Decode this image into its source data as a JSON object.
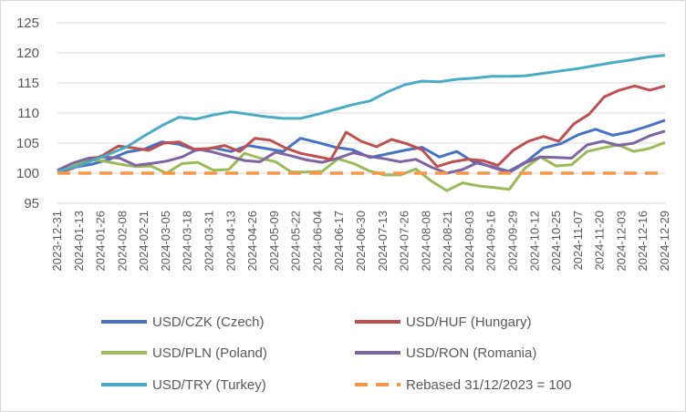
{
  "chart_data": {
    "type": "line",
    "title": "",
    "xlabel": "",
    "ylabel": "",
    "ylim": [
      95,
      125
    ],
    "yticks": [
      95,
      100,
      105,
      110,
      115,
      120,
      125
    ],
    "grid": "horizontal",
    "legend_position": "bottom",
    "x_tick_labels": [
      "2023-12-31",
      "2024-01-13",
      "2024-01-26",
      "2024-02-08",
      "2024-02-21",
      "2024-03-05",
      "2024-03-18",
      "2024-03-31",
      "2024-04-13",
      "2024-04-26",
      "2024-05-09",
      "2024-05-22",
      "2024-06-04",
      "2024-06-17",
      "2024-06-30",
      "2024-07-13",
      "2024-07-26",
      "2024-08-08",
      "2024-08-21",
      "2024-09-03",
      "2024-09-16",
      "2024-09-29",
      "2024-10-12",
      "2024-10-25",
      "2024-11-07",
      "2024-11-20",
      "2024-12-03",
      "2024-12-16",
      "2024-12-29"
    ],
    "series": [
      {
        "name": "USD/CZK (Czech)",
        "color": "#4472C4",
        "dash": "solid",
        "values": [
          100.2,
          101,
          101.5,
          102.3,
          103.5,
          104,
          105.2,
          104.8,
          103.8,
          104.2,
          103.6,
          104.6,
          104.1,
          103.6,
          105.8,
          105.1,
          104.3,
          103.9,
          102.6,
          103.2,
          103.8,
          104.3,
          102.7,
          103.6,
          101.8,
          101.1,
          100.3,
          101.9,
          104.2,
          104.9,
          106.4,
          107.3,
          106.3,
          106.9,
          107.8,
          108.8
        ]
      },
      {
        "name": "USD/HUF (Hungary)",
        "color": "#C0504D",
        "dash": "solid",
        "values": [
          100,
          100.8,
          101.9,
          103,
          104.5,
          104.2,
          103.8,
          105,
          105.2,
          104,
          104.1,
          104.6,
          103.6,
          105.8,
          105.5,
          104.2,
          103.3,
          102.8,
          102.3,
          106.8,
          105.3,
          104.4,
          105.6,
          104.9,
          103.9,
          101.1,
          101.9,
          102.3,
          102.1,
          101.3,
          103.8,
          105.3,
          106.1,
          105.3,
          108.2,
          109.8,
          112.7,
          113.8,
          114.5,
          113.8,
          114.5
        ]
      },
      {
        "name": "USD/PLN (Poland)",
        "color": "#9BBB59",
        "dash": "solid",
        "values": [
          100.3,
          101.2,
          102.3,
          102,
          101.5,
          101.1,
          101.2,
          100,
          101.6,
          101.8,
          100.5,
          100.6,
          103.3,
          102.5,
          101.9,
          100.2,
          100.2,
          100.3,
          102.4,
          101.6,
          100.4,
          99.7,
          99.7,
          100.7,
          98.7,
          97.1,
          98.4,
          97.9,
          97.6,
          97.3,
          100.8,
          102.7,
          101.2,
          101.4,
          103.6,
          104.2,
          104.7,
          103.6,
          104.1,
          105.1
        ]
      },
      {
        "name": "USD/RON (Romania)",
        "color": "#8064A2",
        "dash": "solid",
        "values": [
          100.5,
          101.7,
          102.5,
          102.7,
          102.5,
          101.3,
          101.6,
          102,
          102.7,
          104,
          103.5,
          102.8,
          102.1,
          101.9,
          103.5,
          102.9,
          102.2,
          101.8,
          102.5,
          103.4,
          102.8,
          102.4,
          101.9,
          102.3,
          101,
          100,
          100.6,
          101.8,
          100.9,
          100.1,
          101.7,
          102.7,
          102.6,
          102.5,
          104.7,
          105.3,
          104.6,
          105,
          106.2,
          107
        ]
      },
      {
        "name": "USD/TRY (Turkey)",
        "color": "#4BACC6",
        "dash": "solid",
        "values": [
          100.3,
          101,
          102.1,
          103.2,
          104.4,
          106.2,
          107.9,
          109.3,
          109,
          109.7,
          110.2,
          109.8,
          109.4,
          109.1,
          109.1,
          109.8,
          110.6,
          111.4,
          112,
          113.5,
          114.7,
          115.3,
          115.2,
          115.6,
          115.8,
          116.1,
          116.1,
          116.2,
          116.6,
          117,
          117.4,
          117.9,
          118.4,
          118.8,
          119.3,
          119.6
        ]
      },
      {
        "name": "Rebased 31/12/2023 = 100",
        "color": "#F79646",
        "dash": "dashed",
        "values": [
          100,
          100
        ]
      }
    ]
  }
}
